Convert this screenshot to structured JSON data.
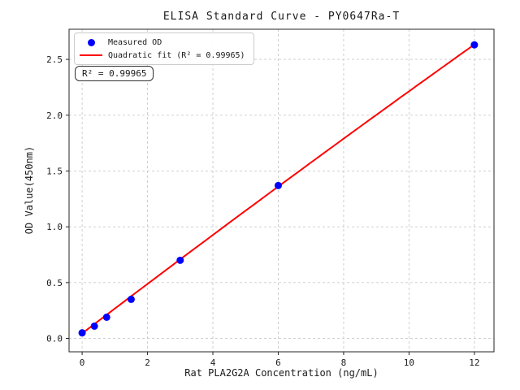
{
  "chart_data": {
    "type": "scatter",
    "title": "ELISA Standard Curve - PY0647Ra-T",
    "xlabel": "Rat PLA2G2A Concentration (ng/mL)",
    "ylabel": "OD Value(450nm)",
    "xlim": [
      -0.4,
      12.6
    ],
    "ylim": [
      -0.12,
      2.77
    ],
    "x_ticks": [
      0,
      2,
      4,
      6,
      8,
      10,
      12
    ],
    "x_tick_labels": [
      "0",
      "2",
      "4",
      "6",
      "8",
      "10",
      "12"
    ],
    "y_ticks": [
      0.0,
      0.5,
      1.0,
      1.5,
      2.0,
      2.5
    ],
    "y_tick_labels": [
      "0.0",
      "0.5",
      "1.0",
      "1.5",
      "2.0",
      "2.5"
    ],
    "grid": true,
    "grid_style": "dashed",
    "series": [
      {
        "name": "Measured OD",
        "type": "scatter",
        "color": "#0000ff",
        "x": [
          0,
          0.375,
          0.75,
          1.5,
          3,
          6,
          12
        ],
        "y": [
          0.05,
          0.11,
          0.19,
          0.35,
          0.7,
          1.37,
          2.63
        ]
      },
      {
        "name": "Quadratic fit (R² = 0.99965)",
        "type": "line",
        "color": "#ff0000",
        "fit": "quadratic",
        "coeffs": {
          "a": -0.0006,
          "b": 0.2229,
          "c": 0.045
        },
        "x_range": [
          0,
          12
        ]
      }
    ],
    "legend": {
      "position": "upper left",
      "entries": [
        {
          "marker": "dot",
          "color": "#0000ff",
          "label": "Measured OD"
        },
        {
          "marker": "line",
          "color": "#ff0000",
          "label": "Quadratic fit (R² = 0.99965)"
        }
      ]
    },
    "annotation": {
      "text": "R² = 0.99965"
    },
    "style": {
      "grid_color": "#c9c9c9",
      "spine_color": "#262626",
      "text_color": "#1a1a1a",
      "background": "#ffffff"
    }
  }
}
